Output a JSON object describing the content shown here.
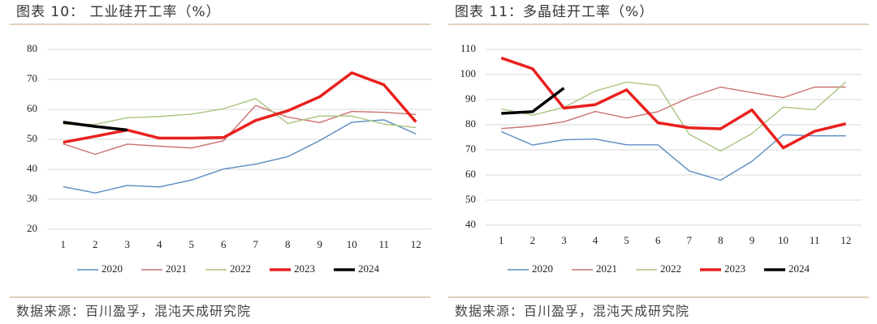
{
  "chart_data": [
    {
      "type": "line",
      "title": "图表 10：  工业硅开工率（%）",
      "source": "数据来源：百川盈孚，混沌天成研究院",
      "categories": [
        "1",
        "2",
        "3",
        "4",
        "5",
        "6",
        "7",
        "8",
        "9",
        "10",
        "11",
        "12"
      ],
      "ylim": [
        20,
        80
      ],
      "yticks": [
        20,
        30,
        40,
        50,
        60,
        70,
        80
      ],
      "grid": true,
      "series": [
        {
          "name": "2020",
          "color": "#5b8bc0",
          "values": [
            34.2,
            32.1,
            34.6,
            34.1,
            36.4,
            40.1,
            41.7,
            44.2,
            49.6,
            55.7,
            56.5,
            51.8
          ]
        },
        {
          "name": "2021",
          "color": "#c8736f",
          "values": [
            48.5,
            45,
            48.4,
            47.7,
            47.1,
            49.5,
            61.3,
            57.4,
            55.6,
            59.3,
            59,
            58.3
          ]
        },
        {
          "name": "2022",
          "color": "#a9c47f",
          "values": [
            55,
            55,
            57.2,
            57.6,
            58.4,
            60.2,
            63.6,
            55.3,
            57.8,
            57.8,
            55.1,
            53.9
          ]
        },
        {
          "name": "2023",
          "color": "#e8211e",
          "values": [
            49,
            51,
            53.1,
            50.4,
            50.4,
            50.6,
            56.3,
            59.5,
            64.2,
            72.2,
            68.2,
            55.8
          ]
        },
        {
          "name": "2024",
          "color": "#000000",
          "values": [
            55.7,
            54.3,
            53.1,
            null,
            null,
            null,
            null,
            null,
            null,
            null,
            null,
            null
          ]
        }
      ]
    },
    {
      "type": "line",
      "title": "图表 11：多晶硅开工率（%）",
      "source": "数据来源：百川盈孚，混沌天成研究院",
      "categories": [
        "1",
        "2",
        "3",
        "4",
        "5",
        "6",
        "7",
        "8",
        "9",
        "10",
        "11",
        "12"
      ],
      "ylim": [
        40,
        110
      ],
      "yticks": [
        40,
        50,
        60,
        70,
        80,
        90,
        100,
        110
      ],
      "grid": true,
      "series": [
        {
          "name": "2020",
          "color": "#5b8bc0",
          "values": [
            77.3,
            71.9,
            74,
            74.3,
            72,
            72,
            61.6,
            57.9,
            65.4,
            76,
            75.6,
            75.6
          ]
        },
        {
          "name": "2021",
          "color": "#c8736f",
          "values": [
            78.5,
            79.4,
            81.2,
            85.3,
            82.7,
            85.2,
            90.8,
            95,
            92.8,
            90.8,
            95,
            95
          ]
        },
        {
          "name": "2022",
          "color": "#a9c47f",
          "values": [
            86.3,
            83.8,
            86.9,
            93.4,
            97,
            95.6,
            76.2,
            69.5,
            76.5,
            87,
            86,
            97.1
          ]
        },
        {
          "name": "2023",
          "color": "#e8211e",
          "values": [
            106.6,
            102.3,
            86.6,
            88,
            93.9,
            80.8,
            78.8,
            78.4,
            85.9,
            70.8,
            77.4,
            80.4
          ]
        },
        {
          "name": "2024",
          "color": "#000000",
          "values": [
            84.5,
            85.2,
            94.6,
            null,
            null,
            null,
            null,
            null,
            null,
            null,
            null,
            null
          ]
        }
      ]
    }
  ]
}
